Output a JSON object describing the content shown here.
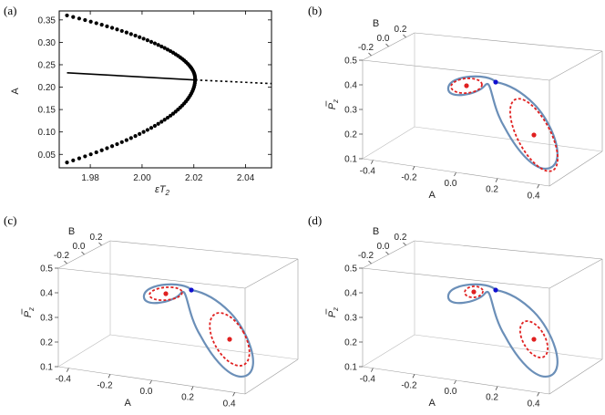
{
  "panel_labels": [
    "(a)",
    "(b)",
    "(c)",
    "(d)"
  ],
  "chart_data": [
    {
      "id": "a",
      "type": "scatter",
      "xlabel": "εT",
      "xlabel_sub": "2",
      "ylabel": "A",
      "xlim": [
        1.968,
        2.05
      ],
      "ylim": [
        0.02,
        0.37
      ],
      "xticks": [
        1.98,
        2.0,
        2.02,
        2.04
      ],
      "xtick_labels": [
        "1.98",
        "2.00",
        "2.02",
        "2.04"
      ],
      "yticks": [
        0.05,
        0.1,
        0.15,
        0.2,
        0.25,
        0.3,
        0.35
      ],
      "ytick_labels": [
        "0.05",
        "0.10",
        "0.15",
        "0.20",
        "0.25",
        "0.30",
        "0.35"
      ],
      "branches": {
        "upper_points": {
          "style": "dots",
          "x_start": 1.971,
          "x_end": 2.0205,
          "A_start": 0.36,
          "A_end": 0.218
        },
        "lower_points": {
          "style": "dots",
          "x_start": 1.971,
          "x_end": 2.0205,
          "A_start": 0.032,
          "A_end": 0.218
        },
        "stable_line": {
          "style": "solid",
          "x": [
            1.971,
            2.0205
          ],
          "A": [
            0.232,
            0.216
          ]
        },
        "unstable_line": {
          "style": "dashed",
          "x": [
            2.0205,
            2.05
          ],
          "A": [
            0.216,
            0.208
          ]
        }
      }
    },
    {
      "id": "b",
      "type": "line",
      "axes": {
        "A": [
          -0.45,
          0.45
        ],
        "B": [
          -0.3,
          0.3
        ],
        "Pz": [
          0.1,
          0.5
        ]
      },
      "A_ticks": [
        "-0.4",
        "-0.2",
        "0.0",
        "0.2",
        "0.4"
      ],
      "B_ticks": [
        "-0.2",
        "0.0",
        "0.2"
      ],
      "Pz_ticks": [
        "0.1",
        "0.2",
        "0.3",
        "0.4",
        "0.5"
      ],
      "A_label": "A",
      "B_label": "B",
      "Pz_label": "P",
      "Pz_sub": "z",
      "series": [
        {
          "style": "solid",
          "color": "#6b8fb8"
        },
        {
          "style": "dashed",
          "color": "#e02020"
        },
        {
          "style": "dashed",
          "color": "#e02020"
        },
        {
          "style": "marker",
          "color": "#e02020"
        },
        {
          "style": "marker",
          "color": "#e02020"
        },
        {
          "style": "marker",
          "color": "#1010d0"
        }
      ]
    },
    {
      "id": "c",
      "type": "line",
      "axes": {
        "A": [
          -0.45,
          0.45
        ],
        "B": [
          -0.3,
          0.3
        ],
        "Pz": [
          0.1,
          0.5
        ]
      },
      "A_ticks": [
        "-0.4",
        "-0.2",
        "0.0",
        "0.2",
        "0.4"
      ],
      "B_ticks": [
        "-0.2",
        "0.0",
        "0.2"
      ],
      "Pz_ticks": [
        "0.1",
        "0.2",
        "0.3",
        "0.4",
        "0.5"
      ],
      "A_label": "A",
      "B_label": "B",
      "Pz_label": "P",
      "Pz_sub": "z"
    },
    {
      "id": "d",
      "type": "line",
      "axes": {
        "A": [
          -0.45,
          0.45
        ],
        "B": [
          -0.3,
          0.3
        ],
        "Pz": [
          0.1,
          0.5
        ]
      },
      "A_ticks": [
        "-0.4",
        "-0.2",
        "0.0",
        "0.2",
        "0.4"
      ],
      "B_ticks": [
        "-0.2",
        "0.0",
        "0.2"
      ],
      "Pz_ticks": [
        "0.1",
        "0.2",
        "0.3",
        "0.4",
        "0.5"
      ],
      "A_label": "A",
      "B_label": "B",
      "Pz_label": "P",
      "Pz_sub": "z"
    }
  ]
}
